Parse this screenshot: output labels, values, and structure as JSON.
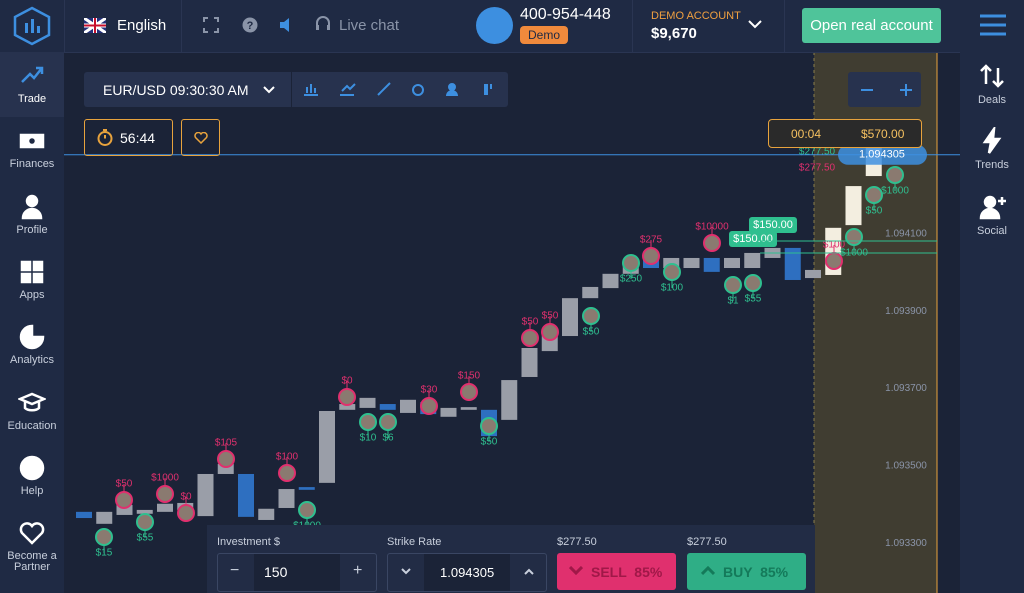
{
  "header": {
    "language": "English",
    "live_chat": "Live chat",
    "phone": "400-954-448",
    "mode_badge": "Demo",
    "account_label": "DEMO ACCOUNT",
    "balance": "$9,670",
    "cta": "Open real account"
  },
  "sidebar_left": [
    "Trade",
    "Finances",
    "Profile",
    "Apps",
    "Analytics",
    "Education",
    "Help",
    "Become a Partner"
  ],
  "sidebar_right": [
    "Deals",
    "Trends",
    "Social"
  ],
  "toolbar": {
    "asset_time": "EUR/USD 09:30:30 AM",
    "timer": "56:44"
  },
  "expiry": {
    "countdown": "00:04",
    "payout": "$570.00"
  },
  "chart_data": {
    "type": "candlestick",
    "ylim": [
      1.093171,
      1.094571
    ],
    "yticks": [
      {
        "value": 1.0941,
        "label": "1.094100"
      },
      {
        "value": 1.0939,
        "label": "1.093900"
      },
      {
        "value": 1.0937,
        "label": "1.093700"
      },
      {
        "value": 1.0935,
        "label": "1.093500"
      },
      {
        "value": 1.0933,
        "label": "1.093300"
      }
    ],
    "current_price": 1.094305,
    "up_color": "#9a9ea8",
    "down_color": "#2e6fc0",
    "candles": {
      "open": [
        1.093381,
        1.09335,
        1.093373,
        1.093376,
        1.093381,
        1.093386,
        1.09337,
        1.093479,
        1.093479,
        1.09336,
        1.093391,
        1.093445,
        1.093456,
        1.093645,
        1.09365,
        1.09366,
        1.093637,
        1.093665,
        1.093627,
        1.093645,
        1.093645,
        1.093619,
        1.09373,
        1.093797,
        1.093836,
        1.093934,
        1.09396,
        1.093997,
        1.094038,
        1.094012,
        1.094012,
        1.094038,
        1.094012,
        1.094012,
        1.094038,
        1.094064,
        1.093986,
        1.093994,
        1.094123,
        1.09425
      ],
      "close": [
        1.093365,
        1.093381,
        1.093399,
        1.093386,
        1.093402,
        1.093404,
        1.093479,
        1.093505,
        1.093368,
        1.093389,
        1.09344,
        1.093438,
        1.093642,
        1.09366,
        1.093676,
        1.093645,
        1.093671,
        1.093634,
        1.09365,
        1.093652,
        1.093577,
        1.093722,
        1.093805,
        1.093839,
        1.093934,
        1.093963,
        1.093997,
        1.094022,
        1.094012,
        1.094038,
        1.094038,
        1.094002,
        1.094038,
        1.094051,
        1.094064,
        1.093981,
        1.094007,
        1.094116,
        1.094224,
        1.094325
      ]
    },
    "trades": [
      {
        "label": "$50",
        "color": "#e0306e"
      },
      {
        "label": "$1000",
        "color": "#e0306e"
      },
      {
        "label": "$0",
        "color": "#e0306e"
      },
      {
        "label": "$105",
        "color": "#e0306e"
      },
      {
        "label": "$100",
        "color": "#e0306e"
      },
      {
        "label": "$0",
        "color": "#e0306e"
      },
      {
        "label": "$30",
        "color": "#e0306e"
      },
      {
        "label": "$150",
        "color": "#e0306e"
      },
      {
        "label": "$50",
        "color": "#e0306e"
      },
      {
        "label": "$50",
        "color": "#e0306e"
      },
      {
        "label": "$275",
        "color": "#e0306e"
      },
      {
        "label": "$10000",
        "color": "#e0306e"
      },
      {
        "label": "$100",
        "color": "#e0306e"
      },
      {
        "label": "$15",
        "color": "#2fbf8f"
      },
      {
        "label": "$55",
        "color": "#2fbf8f"
      },
      {
        "label": "$1000",
        "color": "#2fbf8f"
      },
      {
        "label": "$10",
        "color": "#2fbf8f"
      },
      {
        "label": "$6",
        "color": "#2fbf8f"
      },
      {
        "label": "$50",
        "color": "#2fbf8f"
      },
      {
        "label": "$50",
        "color": "#2fbf8f"
      },
      {
        "label": "$250",
        "color": "#2fbf8f"
      },
      {
        "label": "$100",
        "color": "#2fbf8f"
      },
      {
        "label": "$1",
        "color": "#2fbf8f"
      },
      {
        "label": "$55",
        "color": "#2fbf8f"
      },
      {
        "label": "$50",
        "color": "#2fbf8f"
      },
      {
        "label": "$1000",
        "color": "#2fbf8f"
      },
      {
        "label": "$1000",
        "color": "#2fbf8f"
      }
    ],
    "payout_tags": [
      "$150.00",
      "$150.00"
    ],
    "line_labels": [
      {
        "label": "$277.50",
        "color": "#2fbf8f"
      },
      {
        "label": "$277.50",
        "color": "#e0306e"
      }
    ]
  },
  "trade_panel": {
    "investment_label": "Investment $",
    "investment": "150",
    "strike_label": "Strike Rate",
    "strike": "1.094305",
    "sell_payout": "$277.50",
    "buy_payout": "$277.50",
    "sell": "SELL  85%",
    "buy": "BUY  85%"
  }
}
